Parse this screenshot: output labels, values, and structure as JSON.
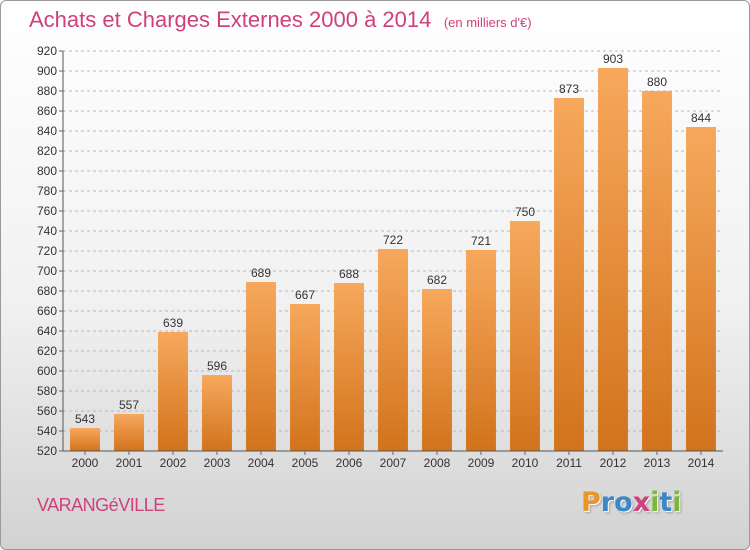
{
  "chart_data": {
    "type": "bar",
    "title": "Achats et Charges Externes 2000 à 2014",
    "subtitle": "(en milliers d'€)",
    "categories": [
      "2000",
      "2001",
      "2002",
      "2003",
      "2004",
      "2005",
      "2006",
      "2007",
      "2008",
      "2009",
      "2010",
      "2011",
      "2012",
      "2013",
      "2014"
    ],
    "values": [
      543,
      557,
      639,
      596,
      689,
      667,
      688,
      722,
      682,
      721,
      750,
      873,
      903,
      880,
      844
    ],
    "ylim": [
      520,
      920
    ],
    "ytick_step": 20,
    "grid": true,
    "bar_color_top": "#f7a85c",
    "bar_color_bottom": "#d2731c",
    "grid_color": "#b8b8b8"
  },
  "footer": {
    "commune": "VARANGéVILLE",
    "commune_color": "#d0407a"
  },
  "logo": {
    "letters": [
      {
        "char": "P",
        "color": "#e8962b"
      },
      {
        "char": "r",
        "color": "#3b88c8"
      },
      {
        "char": "o",
        "color": "#3b88c8"
      },
      {
        "char": "x",
        "color": "#d0407a"
      },
      {
        "char": "i",
        "color": "#7ab83a"
      },
      {
        "char": "t",
        "color": "#3b88c8"
      },
      {
        "char": "i",
        "color": "#7ab83a"
      }
    ]
  }
}
